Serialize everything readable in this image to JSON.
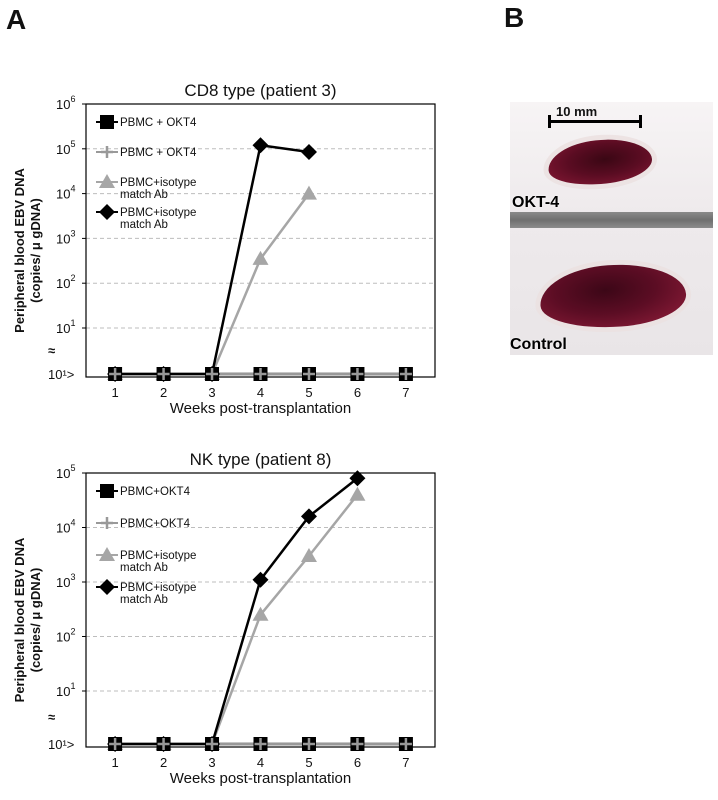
{
  "panel_labels": {
    "a": "A",
    "b": "B"
  },
  "photo": {
    "scale_label": "10 mm",
    "top_label": "OKT-4",
    "bottom_label": "Control"
  },
  "chart_data": [
    {
      "type": "line",
      "title": "CD8 type (patient 3)",
      "xlabel": "Weeks post-transplantation",
      "ylabel_line1": "Peripheral blood EBV DNA",
      "ylabel_line2": "(copies/ μ gDNA)",
      "x_ticks": [
        "1",
        "2",
        "3",
        "4",
        "5",
        "6",
        "7"
      ],
      "y_scale": "log",
      "y_ticks": [
        {
          "base": "10",
          "exp": "6",
          "value": 1000000
        },
        {
          "base": "10",
          "exp": "5",
          "value": 100000
        },
        {
          "base": "10",
          "exp": "4",
          "value": 10000
        },
        {
          "base": "10",
          "exp": "3",
          "value": 1000
        },
        {
          "base": "10",
          "exp": "2",
          "value": 100
        },
        {
          "base": "10",
          "exp": "1",
          "value": 10
        }
      ],
      "below_detection_label": "10¹>",
      "axis_break": "≈",
      "grid": "horizontal dashed",
      "legend_position": "top-left",
      "series": [
        {
          "name": "PBMC + OKT4",
          "marker": "square",
          "color": "#000000",
          "line_color": "#000000",
          "points": [
            [
              1,
              "<10"
            ],
            [
              2,
              "<10"
            ],
            [
              3,
              "<10"
            ],
            [
              4,
              "<10"
            ],
            [
              5,
              "<10"
            ],
            [
              6,
              "<10"
            ],
            [
              7,
              "<10"
            ]
          ]
        },
        {
          "name": "PBMC + OKT4",
          "marker": "plus",
          "color": "#999999",
          "line_color": "#999999",
          "points": [
            [
              1,
              "<10"
            ],
            [
              2,
              "<10"
            ],
            [
              3,
              "<10"
            ],
            [
              4,
              "<10"
            ],
            [
              5,
              "<10"
            ],
            [
              6,
              "<10"
            ],
            [
              7,
              "<10"
            ]
          ]
        },
        {
          "name": "PBMC+isotype match Ab",
          "marker": "triangle",
          "color": "#a6a6a6",
          "line_color": "#a6a6a6",
          "points": [
            [
              1,
              "<10"
            ],
            [
              2,
              "<10"
            ],
            [
              3,
              "<10"
            ],
            [
              4,
              350
            ],
            [
              5,
              10000
            ]
          ]
        },
        {
          "name": "PBMC+isotype match Ab",
          "marker": "diamond",
          "color": "#000000",
          "line_color": "#000000",
          "points": [
            [
              1,
              "<10"
            ],
            [
              2,
              "<10"
            ],
            [
              3,
              "<10"
            ],
            [
              4,
              120000
            ],
            [
              5,
              85000
            ]
          ]
        }
      ]
    },
    {
      "type": "line",
      "title": "NK type (patient 8)",
      "xlabel": "Weeks post-transplantation",
      "ylabel_line1": "Peripheral blood EBV DNA",
      "ylabel_line2": "(copies/ μ gDNA)",
      "x_ticks": [
        "1",
        "2",
        "3",
        "4",
        "5",
        "6",
        "7"
      ],
      "y_scale": "log",
      "y_ticks": [
        {
          "base": "10",
          "exp": "5",
          "value": 100000
        },
        {
          "base": "10",
          "exp": "4",
          "value": 10000
        },
        {
          "base": "10",
          "exp": "3",
          "value": 1000
        },
        {
          "base": "10",
          "exp": "2",
          "value": 100
        },
        {
          "base": "10",
          "exp": "1",
          "value": 10
        }
      ],
      "below_detection_label": "10¹>",
      "axis_break": "≈",
      "grid": "horizontal dashed",
      "legend_position": "top-left",
      "series": [
        {
          "name": "PBMC+OKT4",
          "marker": "square",
          "color": "#000000",
          "line_color": "#000000",
          "points": [
            [
              1,
              "<10"
            ],
            [
              2,
              "<10"
            ],
            [
              3,
              "<10"
            ],
            [
              4,
              "<10"
            ],
            [
              5,
              "<10"
            ],
            [
              6,
              "<10"
            ],
            [
              7,
              "<10"
            ]
          ]
        },
        {
          "name": "PBMC+OKT4",
          "marker": "plus",
          "color": "#999999",
          "line_color": "#999999",
          "points": [
            [
              1,
              "<10"
            ],
            [
              2,
              "<10"
            ],
            [
              3,
              "<10"
            ],
            [
              4,
              "<10"
            ],
            [
              5,
              "<10"
            ],
            [
              6,
              "<10"
            ],
            [
              7,
              "<10"
            ]
          ]
        },
        {
          "name": "PBMC+isotype match Ab",
          "marker": "triangle",
          "color": "#a6a6a6",
          "line_color": "#a6a6a6",
          "points": [
            [
              1,
              "<10"
            ],
            [
              2,
              "<10"
            ],
            [
              3,
              "<10"
            ],
            [
              4,
              250
            ],
            [
              5,
              3000
            ],
            [
              6,
              40000
            ]
          ]
        },
        {
          "name": "PBMC+isotype match Ab",
          "marker": "diamond",
          "color": "#000000",
          "line_color": "#000000",
          "points": [
            [
              1,
              "<10"
            ],
            [
              2,
              "<10"
            ],
            [
              3,
              "<10"
            ],
            [
              4,
              1100
            ],
            [
              5,
              16000
            ],
            [
              6,
              80000
            ]
          ]
        }
      ]
    }
  ]
}
